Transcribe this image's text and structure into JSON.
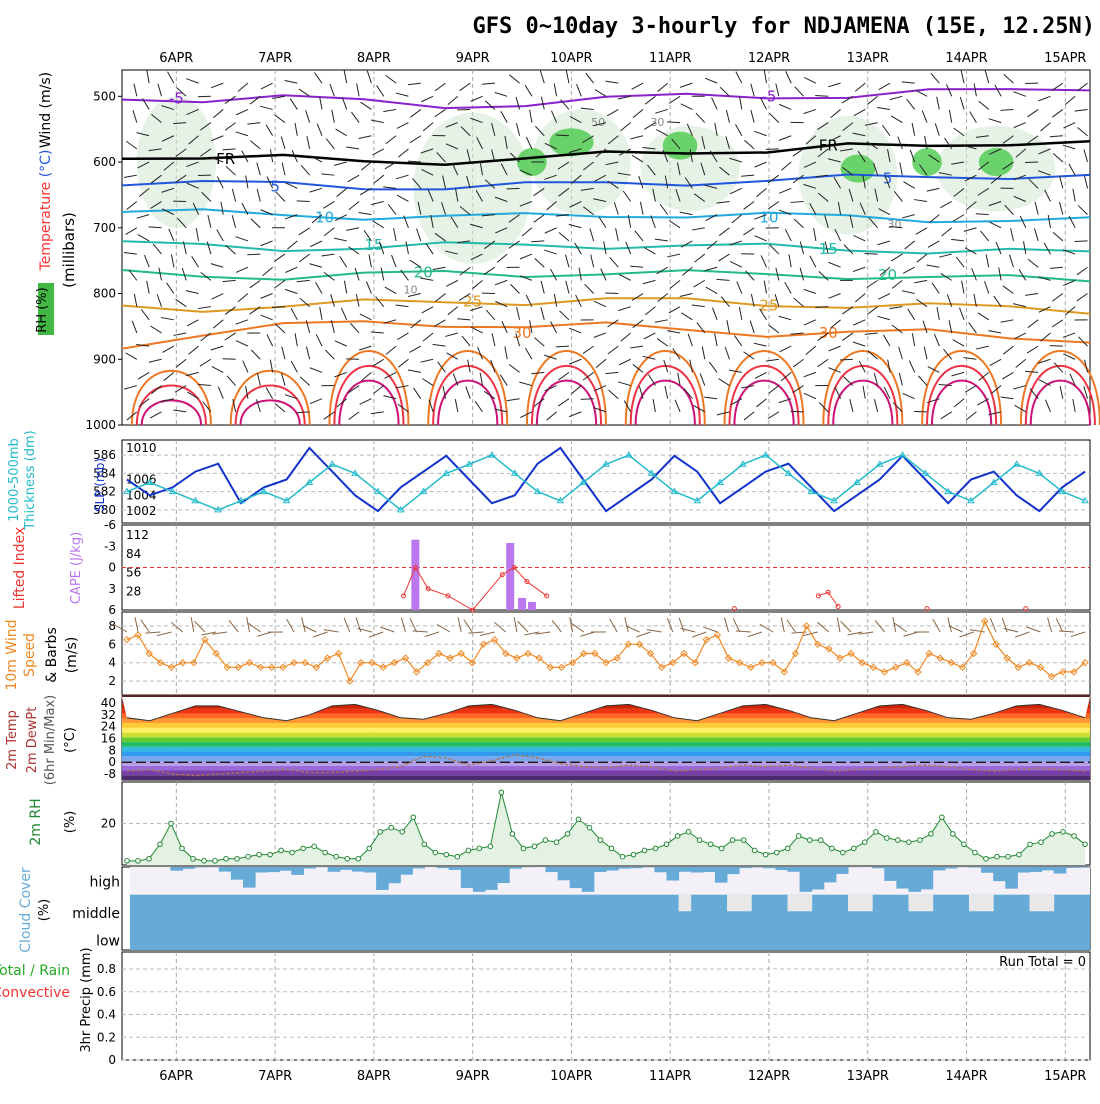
{
  "title": "GFS 0~10day 3-hourly for NDJAMENA (15E, 12.25N)",
  "date_labels": [
    "6APR",
    "7APR",
    "8APR",
    "9APR",
    "10APR",
    "11APR",
    "12APR",
    "13APR",
    "14APR",
    "15APR"
  ],
  "colors": {
    "wind_label": "#000000",
    "temp_label": "#ff3333",
    "temp_label2": "#2255dd",
    "rh_green": "#22aa22",
    "thickness": "#22bbcc",
    "slp": "#1133cc",
    "lifted": "#ee3333",
    "cape": "#bb77ee",
    "wind10": "#ee8822",
    "rh2m": "#228833",
    "cloud": "#66aad8",
    "precip_total": "#22aa22",
    "precip_conv": "#ee3333"
  },
  "chart_data": [
    {
      "type": "area",
      "panel": "upper_air",
      "title": "Wind (m/s) / Temperature (°C) / RH (%)",
      "ylabel": "(millibars)",
      "ylabel_parts": {
        "wind": "Wind (m/s)",
        "temp": "Temperature",
        "temp_unit": "(°C)",
        "rh": "RH (%)",
        "millibars": "(millibars)"
      },
      "y_ticks": [
        500,
        600,
        700,
        800,
        900,
        1000
      ],
      "ylim": [
        460,
        1000
      ],
      "isotherms": [
        {
          "value": -5,
          "label": "-5",
          "level": [
            505,
            503,
            500,
            510,
            515,
            510,
            505,
            500,
            498,
            500,
            495,
            490,
            485
          ]
        },
        {
          "value": "FR",
          "label": "FR",
          "level": [
            590,
            592,
            595,
            600,
            598,
            595,
            590,
            585,
            580,
            575,
            580,
            570,
            565
          ]
        },
        {
          "value": 5,
          "label": "5",
          "level": [
            630,
            632,
            635,
            637,
            638,
            636,
            633,
            630,
            628,
            625,
            622,
            620,
            622
          ]
        },
        {
          "value": 10,
          "label": "10",
          "level": [
            675,
            678,
            680,
            682,
            684,
            683,
            680,
            680,
            682,
            684,
            686,
            688,
            690
          ]
        },
        {
          "value": 15,
          "label": "15",
          "level": [
            725,
            728,
            730,
            730,
            728,
            726,
            726,
            728,
            730,
            732,
            734,
            736,
            740
          ]
        },
        {
          "value": 20,
          "label": "20",
          "level": [
            770,
            772,
            774,
            772,
            770,
            770,
            768,
            770,
            772,
            772,
            775,
            778,
            780
          ]
        },
        {
          "value": 25,
          "label": "25",
          "level": [
            820,
            822,
            820,
            815,
            812,
            812,
            810,
            812,
            815,
            818,
            820,
            822,
            825
          ]
        },
        {
          "value": 30,
          "label": "30",
          "level": [
            880,
            860,
            850,
            845,
            845,
            850,
            850,
            855,
            860,
            860,
            860,
            865,
            870
          ]
        }
      ],
      "rh_labels": [
        "50",
        "30",
        "30",
        "10"
      ]
    },
    {
      "type": "line",
      "panel": "thickness_slp",
      "ylabels": [
        "1000-500mb",
        "Thickness (dm)",
        "SLP (mb)"
      ],
      "left_ticks": [
        586,
        584,
        582,
        580
      ],
      "right_ticks": [
        1010,
        1006,
        1004,
        1002
      ],
      "series": [
        {
          "name": "SLP (mb)",
          "values": [
            1006,
            1004,
            1005,
            1007,
            1008,
            1003,
            1005,
            1006,
            1010,
            1007,
            1004,
            1002,
            1005,
            1007,
            1009,
            1006,
            1003,
            1004,
            1008,
            1010,
            1006,
            1002,
            1004,
            1006,
            1009,
            1007,
            1003,
            1005,
            1007,
            1008,
            1005,
            1002,
            1004,
            1006,
            1009,
            1006,
            1003,
            1006,
            1007,
            1004,
            1002,
            1005,
            1007
          ]
        },
        {
          "name": "1000-500mb Thickness (dm)",
          "values": [
            582,
            583,
            582,
            581,
            580,
            581,
            582,
            581,
            583,
            585,
            584,
            582,
            580,
            582,
            584,
            585,
            586,
            584,
            582,
            581,
            583,
            585,
            586,
            584,
            582,
            581,
            583,
            585,
            586,
            584,
            582,
            581,
            583,
            585,
            586,
            584,
            582,
            581,
            583,
            585,
            584,
            582,
            581
          ]
        }
      ]
    },
    {
      "type": "bar",
      "panel": "lifted_cape",
      "ylabels": [
        "Lifted Index",
        "CAPE (J/kg)"
      ],
      "left_ticks": [
        "-6",
        "-3",
        "0",
        "3",
        "6"
      ],
      "right_ticks": [
        "112",
        "84",
        "56",
        "28"
      ],
      "cape_bars": [
        {
          "day": 8.42,
          "value": 105
        },
        {
          "day": 9.38,
          "value": 100
        },
        {
          "day": 9.5,
          "value": 18
        },
        {
          "day": 9.6,
          "value": 12
        }
      ],
      "lifted_index": [
        {
          "day": 8.3,
          "value": 4
        },
        {
          "day": 8.42,
          "value": 0
        },
        {
          "day": 8.55,
          "value": 3
        },
        {
          "day": 8.75,
          "value": 4
        },
        {
          "day": 9.0,
          "value": 6
        },
        {
          "day": 9.3,
          "value": 1
        },
        {
          "day": 9.42,
          "value": 0
        },
        {
          "day": 9.55,
          "value": 2
        },
        {
          "day": 9.75,
          "value": 4
        },
        {
          "day": 11.65,
          "value": 5.8
        },
        {
          "day": 12.5,
          "value": 4
        },
        {
          "day": 12.6,
          "value": 3.5
        },
        {
          "day": 12.7,
          "value": 5.5
        },
        {
          "day": 13.6,
          "value": 5.8
        },
        {
          "day": 14.6,
          "value": 5.8
        }
      ]
    },
    {
      "type": "line",
      "panel": "wind10m",
      "ylabels": [
        "10m Wind",
        "Speed",
        "& Barbs",
        "(m/s)"
      ],
      "left_ticks": [
        8,
        6,
        4,
        2
      ],
      "series": [
        {
          "name": "10m Wind Speed",
          "values": [
            6.5,
            7,
            5,
            4,
            3.5,
            4,
            4,
            6.5,
            5,
            3.5,
            3.5,
            4,
            3.5,
            3.5,
            3.5,
            4,
            4,
            3.5,
            4.5,
            5,
            2,
            4,
            4,
            3.5,
            4,
            4.5,
            3,
            4,
            5,
            4.5,
            5,
            4,
            6,
            6.5,
            5,
            4.5,
            5,
            4.5,
            3.5,
            3.5,
            4,
            5,
            5,
            4,
            4.5,
            6,
            6,
            5,
            3.5,
            4,
            5,
            4,
            6.5,
            7,
            4.5,
            4,
            3.5,
            4,
            4,
            3,
            5,
            8,
            6,
            5.5,
            4.5,
            5,
            4,
            3.5,
            3,
            3.5,
            4,
            3,
            5,
            4.5,
            4,
            3.5,
            5,
            8.5,
            6,
            4.5,
            3.5,
            4,
            3.5,
            2.5,
            3,
            3,
            4
          ]
        }
      ]
    },
    {
      "type": "area",
      "panel": "temp2m",
      "ylabels": [
        "2m Temp",
        "2m DewPt",
        "(6hr Min/Max)",
        "(°C)"
      ],
      "left_ticks": [
        40,
        32,
        24,
        16,
        8,
        0,
        -8
      ],
      "series": [
        {
          "name": "2m Temp",
          "values": [
            30,
            28,
            33,
            38,
            38,
            34,
            30,
            28,
            32,
            38,
            39,
            35,
            30,
            29,
            33,
            38,
            39,
            35,
            30,
            28,
            33,
            38,
            39,
            35,
            30,
            28,
            33,
            38,
            39,
            35,
            30,
            28,
            33,
            38,
            39,
            35,
            30,
            29,
            33,
            38,
            39,
            35,
            30
          ]
        },
        {
          "name": "2m DewPt",
          "values": [
            -6,
            -5,
            -8,
            -9,
            -8,
            -7,
            -6,
            -5,
            -7,
            -7,
            -6,
            -5,
            -3,
            4,
            3,
            -2,
            1,
            5,
            3,
            -1,
            -3,
            -4,
            -2,
            -3,
            -6,
            -5,
            -4,
            -2,
            -3,
            -2,
            -4,
            -6,
            -5,
            -4,
            -3,
            -2,
            -3,
            -5,
            -6,
            -5,
            -4,
            -5,
            -6
          ]
        }
      ]
    },
    {
      "type": "area",
      "panel": "rh2m",
      "ylabels": [
        "2m RH",
        "(%)"
      ],
      "left_ticks": [
        20
      ],
      "series": [
        {
          "name": "2m RH",
          "values": [
            2,
            2,
            3,
            10,
            20,
            8,
            3,
            2,
            2,
            3,
            3,
            4,
            5,
            5,
            7,
            6,
            8,
            9,
            6,
            4,
            3,
            3,
            8,
            16,
            18,
            16,
            23,
            10,
            6,
            5,
            4,
            7,
            8,
            9,
            35,
            15,
            8,
            9,
            12,
            11,
            15,
            22,
            18,
            12,
            8,
            4,
            5,
            7,
            8,
            10,
            14,
            16,
            12,
            10,
            8,
            12,
            12,
            7,
            5,
            6,
            8,
            14,
            12,
            12,
            8,
            6,
            8,
            11,
            16,
            13,
            12,
            11,
            12,
            15,
            23,
            15,
            10,
            6,
            3,
            4,
            4,
            5,
            10,
            11,
            15,
            16,
            14,
            10
          ]
        }
      ]
    },
    {
      "type": "heatmap",
      "panel": "cloud",
      "ylabels": [
        "Cloud Cover",
        "(%)"
      ],
      "row_labels": [
        "high",
        "middle",
        "low"
      ]
    },
    {
      "type": "bar",
      "panel": "precip",
      "ylabels": [
        "Total / Rain",
        "Convective",
        "3hr Precip (mm)"
      ],
      "left_ticks": [
        "0.8",
        "0.6",
        "0.4",
        "0.2",
        "0"
      ],
      "run_total": "Run Total = 0",
      "values": []
    }
  ]
}
